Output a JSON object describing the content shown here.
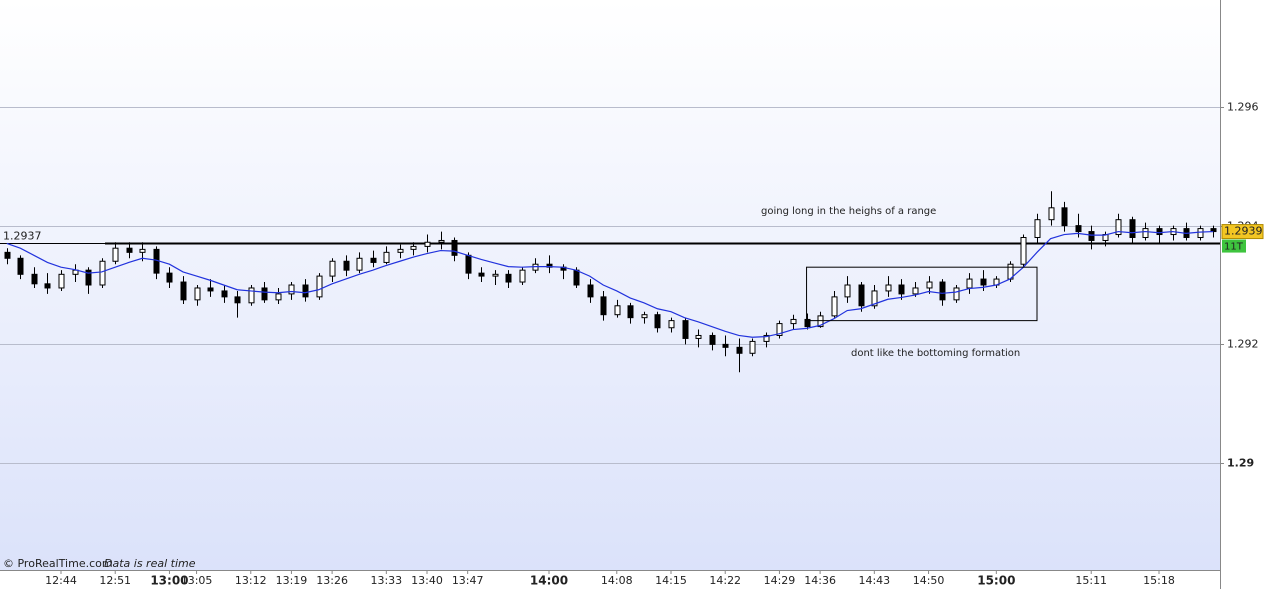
{
  "chart_data": {
    "type": "candlestick",
    "open": [
      1.29355,
      1.29345,
      1.29318,
      1.29302,
      1.29295,
      1.29318,
      1.29325,
      1.293,
      1.2934,
      1.29362,
      1.29355,
      1.2936,
      1.2932,
      1.29305,
      1.29275,
      1.29295,
      1.2929,
      1.2928,
      1.2927,
      1.29295,
      1.29275,
      1.29285,
      1.293,
      1.2928,
      1.29315,
      1.2934,
      1.29325,
      1.29345,
      1.29338,
      1.29355,
      1.2936,
      1.29365,
      1.29372,
      1.29375,
      1.2935,
      1.2932,
      1.29315,
      1.29318,
      1.29305,
      1.29325,
      1.29335,
      1.2933,
      1.29325,
      1.293,
      1.2928,
      1.2925,
      1.29265,
      1.29245,
      1.2925,
      1.29228,
      1.2924,
      1.2921,
      1.29215,
      1.292,
      1.29195,
      1.29185,
      1.29205,
      1.29215,
      1.29235,
      1.29242,
      1.2923,
      1.29248,
      1.2928,
      1.293,
      1.29265,
      1.2929,
      1.293,
      1.29285,
      1.29295,
      1.29305,
      1.29275,
      1.29295,
      1.2931,
      1.293,
      1.2931,
      1.29335,
      1.2938,
      1.2941,
      1.2943,
      1.294,
      1.2939,
      1.29375,
      1.29385,
      1.2941,
      1.2938,
      1.29395,
      1.29385,
      1.29395,
      1.2938,
      1.29395
    ],
    "high": [
      1.29362,
      1.2935,
      1.2933,
      1.2932,
      1.29325,
      1.29335,
      1.2933,
      1.29345,
      1.29372,
      1.29372,
      1.29372,
      1.29365,
      1.2933,
      1.29315,
      1.293,
      1.2931,
      1.293,
      1.2929,
      1.293,
      1.29305,
      1.29295,
      1.29305,
      1.2931,
      1.2932,
      1.29345,
      1.2935,
      1.29355,
      1.29358,
      1.29365,
      1.29368,
      1.29372,
      1.29385,
      1.2939,
      1.2938,
      1.29355,
      1.2933,
      1.29325,
      1.29325,
      1.2933,
      1.29345,
      1.2935,
      1.29335,
      1.2933,
      1.2931,
      1.2929,
      1.29275,
      1.2927,
      1.29255,
      1.29255,
      1.29245,
      1.29245,
      1.29225,
      1.2922,
      1.29215,
      1.2921,
      1.2921,
      1.2922,
      1.2924,
      1.2925,
      1.29252,
      1.29255,
      1.2929,
      1.29315,
      1.29305,
      1.293,
      1.29315,
      1.2931,
      1.29305,
      1.29315,
      1.2931,
      1.293,
      1.2932,
      1.29325,
      1.29315,
      1.2934,
      1.29385,
      1.2942,
      1.29458,
      1.2944,
      1.2942,
      1.294,
      1.2939,
      1.2942,
      1.29415,
      1.29405,
      1.294,
      1.294,
      1.29405,
      1.294,
      1.294
    ],
    "low": [
      1.29335,
      1.2931,
      1.29295,
      1.29285,
      1.2929,
      1.29305,
      1.29285,
      1.29295,
      1.29335,
      1.29345,
      1.2934,
      1.2931,
      1.29295,
      1.29268,
      1.29265,
      1.2928,
      1.2927,
      1.29245,
      1.29265,
      1.2927,
      1.29268,
      1.29275,
      1.29272,
      1.29275,
      1.29305,
      1.29315,
      1.2932,
      1.2933,
      1.29335,
      1.29345,
      1.2935,
      1.29355,
      1.2936,
      1.2934,
      1.2931,
      1.29305,
      1.293,
      1.29295,
      1.293,
      1.2932,
      1.2932,
      1.2931,
      1.29295,
      1.2927,
      1.2924,
      1.29245,
      1.29235,
      1.29235,
      1.2922,
      1.2922,
      1.292,
      1.29195,
      1.2919,
      1.2918,
      1.29153,
      1.2918,
      1.29195,
      1.2921,
      1.29225,
      1.29225,
      1.29228,
      1.29245,
      1.2927,
      1.29255,
      1.2926,
      1.2928,
      1.29275,
      1.2928,
      1.29285,
      1.29265,
      1.2927,
      1.29285,
      1.2929,
      1.29295,
      1.29305,
      1.2933,
      1.2937,
      1.294,
      1.2939,
      1.2938,
      1.2936,
      1.29365,
      1.2938,
      1.2937,
      1.29375,
      1.2937,
      1.29375,
      1.29375,
      1.29375,
      1.2938
    ],
    "close": [
      1.29345,
      1.29318,
      1.29302,
      1.29295,
      1.29318,
      1.29325,
      1.293,
      1.2934,
      1.29362,
      1.29355,
      1.2936,
      1.2932,
      1.29305,
      1.29275,
      1.29295,
      1.2929,
      1.2928,
      1.2927,
      1.29295,
      1.29275,
      1.29285,
      1.293,
      1.2928,
      1.29315,
      1.2934,
      1.29325,
      1.29345,
      1.29338,
      1.29355,
      1.2936,
      1.29365,
      1.29372,
      1.29375,
      1.2935,
      1.2932,
      1.29315,
      1.29318,
      1.29305,
      1.29325,
      1.29335,
      1.2933,
      1.29325,
      1.293,
      1.2928,
      1.2925,
      1.29265,
      1.29245,
      1.2925,
      1.29228,
      1.2924,
      1.2921,
      1.29215,
      1.292,
      1.29195,
      1.29185,
      1.29205,
      1.29215,
      1.29235,
      1.29242,
      1.2923,
      1.29248,
      1.2928,
      1.293,
      1.29265,
      1.2929,
      1.293,
      1.29285,
      1.29295,
      1.29305,
      1.29275,
      1.29295,
      1.2931,
      1.293,
      1.2931,
      1.29335,
      1.2938,
      1.2941,
      1.2943,
      1.294,
      1.2939,
      1.29375,
      1.29385,
      1.2941,
      1.2938,
      1.29395,
      1.29385,
      1.29395,
      1.2938,
      1.29395,
      1.2939
    ],
    "ma": [
      1.2937,
      1.29362,
      1.2935,
      1.29338,
      1.2933,
      1.29326,
      1.2932,
      1.29322,
      1.2933,
      1.29338,
      1.29345,
      1.29342,
      1.29335,
      1.29322,
      1.29315,
      1.29308,
      1.293,
      1.29292,
      1.2929,
      1.29288,
      1.29287,
      1.29289,
      1.29287,
      1.29292,
      1.29302,
      1.2931,
      1.29318,
      1.29325,
      1.29333,
      1.2934,
      1.29347,
      1.29353,
      1.29358,
      1.29357,
      1.2935,
      1.29343,
      1.29337,
      1.29331,
      1.2933,
      1.29331,
      1.29331,
      1.2933,
      1.29325,
      1.29315,
      1.293,
      1.2929,
      1.29278,
      1.2927,
      1.2926,
      1.29255,
      1.29245,
      1.29238,
      1.2923,
      1.29222,
      1.29215,
      1.29212,
      1.29213,
      1.29218,
      1.29225,
      1.29227,
      1.29232,
      1.29243,
      1.29257,
      1.2926,
      1.29268,
      1.29276,
      1.29279,
      1.29283,
      1.29289,
      1.29286,
      1.29288,
      1.29294,
      1.29296,
      1.293,
      1.2931,
      1.2933,
      1.29355,
      1.29378,
      1.29385,
      1.29387,
      1.29384,
      1.29384,
      1.2939,
      1.29388,
      1.2939,
      1.29388,
      1.2939,
      1.29387,
      1.29389,
      1.2939
    ],
    "ma_color": "#2233dd",
    "ylim": [
      1.2882,
      1.2978
    ],
    "yticks": [
      1.29,
      1.292,
      1.294,
      1.296
    ],
    "xticks": [
      {
        "value": 4,
        "label": "12:44"
      },
      {
        "value": 8,
        "label": "12:51"
      },
      {
        "value": 12,
        "label": "13:00"
      },
      {
        "value": 14,
        "label": "13:05"
      },
      {
        "value": 18,
        "label": "13:12"
      },
      {
        "value": 21,
        "label": "13:19"
      },
      {
        "value": 24,
        "label": "13:26"
      },
      {
        "value": 28,
        "label": "13:33"
      },
      {
        "value": 31,
        "label": "13:40"
      },
      {
        "value": 34,
        "label": "13:47"
      },
      {
        "value": 40,
        "label": "14:00"
      },
      {
        "value": 45,
        "label": "14:08"
      },
      {
        "value": 49,
        "label": "14:15"
      },
      {
        "value": 53,
        "label": "14:22"
      },
      {
        "value": 57,
        "label": "14:29"
      },
      {
        "value": 60,
        "label": "14:36"
      },
      {
        "value": 64,
        "label": "14:43"
      },
      {
        "value": 68,
        "label": "14:50"
      },
      {
        "value": 73,
        "label": "15:00"
      },
      {
        "value": 80,
        "label": "15:11"
      },
      {
        "value": 85,
        "label": "15:18"
      }
    ],
    "grid": true,
    "hline": 1.2937,
    "box": {
      "from": 59,
      "to": 76,
      "high": 1.2933,
      "low": 1.2924
    },
    "last_price": 1.2939,
    "tick_label": "11T",
    "annotations": [
      "going long in the heighs of a range",
      "dont like the bottoming formation"
    ],
    "footer": {
      "source": "© ProRealTime.com",
      "note": "Data is real time"
    }
  }
}
